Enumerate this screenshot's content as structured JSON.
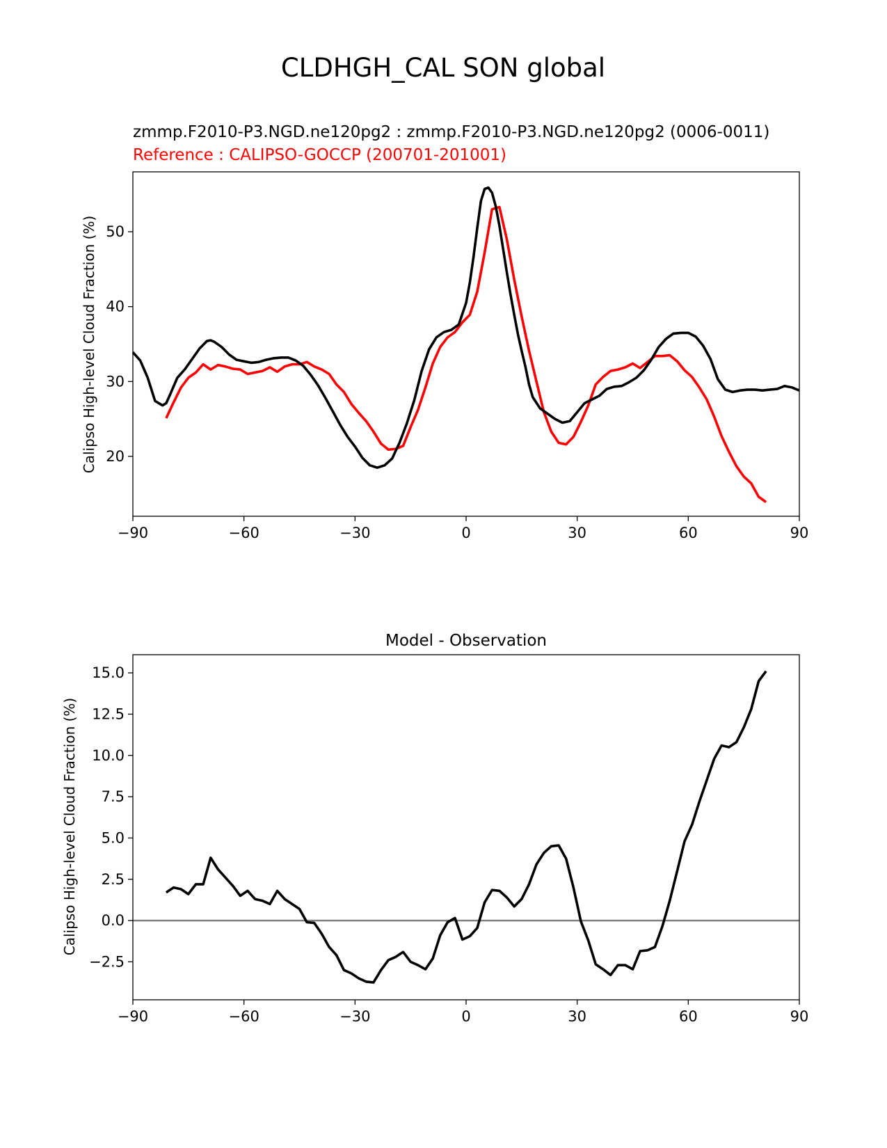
{
  "figure_title": "CLDHGH_CAL SON global",
  "colors": {
    "model": "#000000",
    "reference": "#ff0000",
    "zero_line": "#808080",
    "axes": "#000000"
  },
  "chart_data": [
    {
      "type": "line",
      "title_model": "zmmp.F2010-P3.NGD.ne120pg2 : zmmp.F2010-P3.NGD.ne120pg2 (0006-0011)",
      "title_reference": "Reference : CALIPSO-GOCCP (200701-201001)",
      "xlabel": "",
      "ylabel": "Calipso High-level Cloud Fraction (%)",
      "xlim": [
        -90,
        90
      ],
      "ylim": [
        12,
        58
      ],
      "xticks": [
        -90,
        -60,
        -30,
        0,
        30,
        60,
        90
      ],
      "xtick_labels": [
        "−90",
        "−60",
        "−30",
        "0",
        "30",
        "60",
        "90"
      ],
      "yticks": [
        20,
        30,
        40,
        50
      ],
      "ytick_labels": [
        "20",
        "30",
        "40",
        "50"
      ],
      "series": [
        {
          "name": "zmmp.F2010-P3.NGD.ne120pg2",
          "x": [
            -90,
            -88,
            -86,
            -84,
            -82,
            -81,
            -80,
            -78,
            -76,
            -74,
            -72,
            -70,
            -69,
            -68,
            -66,
            -64,
            -62,
            -60,
            -58,
            -56,
            -54,
            -52,
            -50,
            -48,
            -46,
            -44,
            -42,
            -40,
            -38,
            -36,
            -34,
            -32,
            -30,
            -28,
            -26,
            -24,
            -22,
            -20,
            -18,
            -16,
            -14,
            -12,
            -10,
            -8,
            -6,
            -4,
            -2,
            0,
            1,
            2,
            3,
            4,
            5,
            6,
            7,
            8,
            9,
            10,
            11,
            12,
            13,
            14,
            15,
            16,
            17,
            18,
            20,
            22,
            24,
            26,
            28,
            30,
            32,
            34,
            36,
            38,
            40,
            42,
            44,
            46,
            48,
            50,
            52,
            54,
            56,
            58,
            60,
            62,
            64,
            66,
            68,
            70,
            72,
            74,
            76,
            78,
            80,
            82,
            84,
            86,
            88,
            90
          ],
          "values": [
            33.9,
            32.8,
            30.5,
            27.4,
            26.8,
            27.1,
            28.2,
            30.5,
            31.6,
            33.0,
            34.4,
            35.4,
            35.5,
            35.3,
            34.6,
            33.6,
            32.9,
            32.7,
            32.5,
            32.6,
            32.9,
            33.1,
            33.2,
            33.2,
            32.8,
            32.1,
            30.9,
            29.5,
            27.8,
            26.0,
            24.2,
            22.6,
            21.3,
            19.8,
            18.8,
            18.5,
            18.8,
            19.7,
            21.8,
            24.4,
            27.5,
            31.4,
            34.3,
            35.9,
            36.6,
            36.9,
            37.6,
            40.5,
            43.2,
            46.6,
            50.5,
            54.1,
            55.7,
            55.9,
            55.2,
            53.4,
            50.8,
            47.7,
            44.6,
            41.6,
            38.9,
            36.3,
            34.1,
            32.0,
            29.6,
            27.9,
            26.4,
            25.7,
            25.0,
            24.5,
            24.7,
            25.9,
            27.1,
            27.6,
            28.1,
            29.0,
            29.3,
            29.4,
            29.9,
            30.5,
            31.5,
            32.9,
            34.6,
            35.7,
            36.4,
            36.5,
            36.5,
            36.0,
            34.8,
            33.0,
            30.3,
            28.9,
            28.6,
            28.8,
            28.9,
            28.9,
            28.8,
            28.9,
            29.0,
            29.4,
            29.2,
            28.8
          ]
        },
        {
          "name": "CALIPSO-GOCCP",
          "x": [
            -81,
            -79,
            -77,
            -75,
            -73,
            -71,
            -69,
            -67,
            -65,
            -63,
            -61,
            -59,
            -57,
            -55,
            -53,
            -51,
            -49,
            -47,
            -45,
            -43,
            -41,
            -39,
            -37,
            -35,
            -33,
            -31,
            -29,
            -27,
            -25,
            -23,
            -21,
            -19,
            -17,
            -15,
            -13,
            -11,
            -9,
            -7,
            -5,
            -3,
            -1,
            1,
            3,
            5,
            7,
            9,
            11,
            13,
            15,
            17,
            19,
            21,
            23,
            25,
            27,
            29,
            31,
            33,
            35,
            37,
            39,
            41,
            43,
            45,
            47,
            49,
            51,
            53,
            55,
            57,
            59,
            61,
            63,
            65,
            67,
            69,
            71,
            73,
            75,
            77,
            79,
            81
          ],
          "values": [
            25.1,
            27.2,
            29.2,
            30.5,
            31.2,
            32.3,
            31.6,
            32.2,
            32.0,
            31.7,
            31.6,
            31.0,
            31.2,
            31.4,
            31.9,
            31.3,
            32.0,
            32.3,
            32.3,
            32.6,
            32.0,
            31.6,
            31.0,
            29.6,
            28.6,
            27.0,
            25.8,
            24.7,
            23.3,
            21.7,
            20.9,
            21.0,
            21.4,
            23.9,
            26.2,
            29.2,
            32.4,
            34.6,
            35.9,
            36.6,
            37.9,
            38.9,
            42.0,
            47.2,
            53.0,
            53.3,
            49.0,
            43.6,
            38.7,
            34.1,
            30.0,
            25.9,
            23.3,
            21.8,
            21.6,
            22.6,
            24.6,
            26.8,
            29.6,
            30.6,
            31.4,
            31.6,
            31.9,
            32.4,
            31.8,
            32.6,
            33.4,
            33.4,
            33.5,
            32.7,
            31.5,
            30.6,
            29.2,
            27.6,
            25.3,
            22.7,
            20.6,
            18.7,
            17.3,
            16.4,
            14.6,
            13.9
          ]
        }
      ]
    },
    {
      "type": "line",
      "title": "Model - Observation",
      "xlabel": "",
      "ylabel": "Calipso High-level Cloud Fraction (%)",
      "xlim": [
        -90,
        90
      ],
      "ylim": [
        -4.8,
        16.1
      ],
      "xticks": [
        -90,
        -60,
        -30,
        0,
        30,
        60,
        90
      ],
      "xtick_labels": [
        "−90",
        "−60",
        "−30",
        "0",
        "30",
        "60",
        "90"
      ],
      "yticks": [
        -2.5,
        0.0,
        2.5,
        5.0,
        7.5,
        10.0,
        12.5,
        15.0
      ],
      "ytick_labels": [
        "−2.5",
        "0.0",
        "2.5",
        "5.0",
        "7.5",
        "10.0",
        "12.5",
        "15.0"
      ],
      "zero_line": 0.0,
      "series": [
        {
          "name": "Model - Observation",
          "x": [
            -81,
            -79,
            -77,
            -75,
            -73,
            -71,
            -69,
            -67,
            -65,
            -63,
            -61,
            -59,
            -57,
            -55,
            -53,
            -51,
            -49,
            -47,
            -45,
            -43,
            -41,
            -39,
            -37,
            -35,
            -33,
            -31,
            -29,
            -27,
            -25,
            -23,
            -21,
            -19,
            -17,
            -15,
            -13,
            -11,
            -9,
            -7,
            -5,
            -3,
            -1,
            1,
            3,
            5,
            7,
            9,
            11,
            13,
            15,
            17,
            19,
            21,
            23,
            25,
            27,
            29,
            31,
            33,
            35,
            37,
            39,
            41,
            43,
            45,
            47,
            49,
            51,
            53,
            55,
            57,
            59,
            61,
            63,
            65,
            67,
            69,
            71,
            73,
            75,
            77,
            79,
            81
          ],
          "values": [
            1.7,
            2.0,
            1.9,
            1.6,
            2.2,
            2.2,
            3.8,
            3.1,
            2.6,
            2.1,
            1.5,
            1.8,
            1.3,
            1.2,
            1.0,
            1.8,
            1.3,
            1.0,
            0.7,
            -0.1,
            -0.15,
            -0.8,
            -1.6,
            -2.1,
            -3.0,
            -3.2,
            -3.5,
            -3.7,
            -3.75,
            -3.0,
            -2.4,
            -2.2,
            -1.9,
            -2.5,
            -2.7,
            -2.95,
            -2.3,
            -0.9,
            -0.1,
            0.15,
            -1.15,
            -0.95,
            -0.45,
            1.1,
            1.85,
            1.8,
            1.4,
            0.85,
            1.3,
            2.2,
            3.4,
            4.1,
            4.5,
            4.55,
            3.75,
            2.0,
            -0.05,
            -1.2,
            -2.65,
            -2.95,
            -3.3,
            -2.7,
            -2.7,
            -2.95,
            -1.85,
            -1.8,
            -1.6,
            -0.35,
            1.2,
            3.0,
            4.8,
            5.8,
            7.2,
            8.5,
            9.8,
            10.6,
            10.5,
            10.8,
            11.7,
            12.8,
            14.5,
            15.1
          ]
        }
      ]
    }
  ]
}
